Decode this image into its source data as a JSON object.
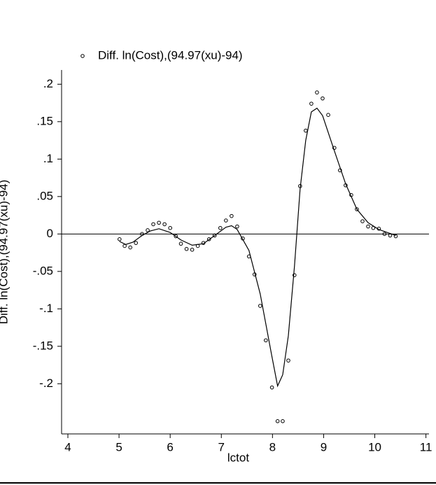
{
  "chart_data": {
    "type": "scatter",
    "y_label": "Diff. ln(Cost),(94.97(xu)-94)",
    "x_label": "lctot",
    "xlim": [
      3.877,
      11.06
    ],
    "ylim": [
      -0.267,
      0.219
    ],
    "xticks": [
      4,
      5,
      6,
      7,
      8,
      9,
      10,
      11
    ],
    "yticks": [
      {
        "value": 0.2,
        "label": ".2"
      },
      {
        "value": 0.15,
        "label": ".15"
      },
      {
        "value": 0.1,
        "label": ".1"
      },
      {
        "value": 0.05,
        "label": ".05"
      },
      0,
      {
        "value": -0.05,
        "label": "-.05"
      },
      {
        "value": -0.1,
        "label": "-.1"
      },
      {
        "value": -0.15,
        "label": "-.15"
      },
      {
        "value": -0.2,
        "label": "-.2"
      }
    ],
    "hline": 0,
    "series": [
      {
        "name": "Diff. ln(Cost),(94.97(xu)-94)",
        "type": "scatter",
        "color": "#000000",
        "x": [
          5.01,
          5.11,
          5.22,
          5.33,
          5.45,
          5.56,
          5.67,
          5.78,
          5.89,
          6.0,
          6.11,
          6.21,
          6.32,
          6.43,
          6.54,
          6.65,
          6.76,
          6.87,
          6.98,
          7.09,
          7.2,
          7.31,
          7.42,
          7.54,
          7.65,
          7.76,
          7.87,
          7.99,
          8.1,
          8.2,
          8.31,
          8.43,
          8.54,
          8.65,
          8.76,
          8.87,
          8.98,
          9.09,
          9.21,
          9.32,
          9.43,
          9.54,
          9.65,
          9.76,
          9.87,
          9.97,
          10.08,
          10.19,
          10.3,
          10.41
        ],
        "values": [
          -0.007,
          -0.016,
          -0.018,
          -0.012,
          0,
          0.005,
          0.013,
          0.015,
          0.013,
          0.008,
          -0.003,
          -0.013,
          -0.02,
          -0.021,
          -0.016,
          -0.012,
          -0.007,
          -0.002,
          0.008,
          0.018,
          0.024,
          0.01,
          -0.006,
          -0.03,
          -0.054,
          -0.096,
          -0.142,
          -0.205,
          -0.25,
          -0.25,
          -0.169,
          -0.055,
          0.064,
          0.138,
          0.174,
          0.189,
          0.181,
          0.159,
          0.115,
          0.085,
          0.065,
          0.052,
          0.033,
          0.017,
          0.01,
          0.008,
          0.007,
          0,
          -0.002,
          -0.003
        ]
      },
      {
        "type": "line",
        "color": "#000000",
        "x": [
          5.01,
          5.13,
          5.27,
          5.45,
          5.61,
          5.78,
          6.0,
          6.21,
          6.43,
          6.65,
          6.87,
          7.09,
          7.2,
          7.31,
          7.54,
          7.76,
          7.99,
          8.1,
          8.2,
          8.31,
          8.43,
          8.54,
          8.65,
          8.76,
          8.87,
          8.98,
          9.21,
          9.43,
          9.65,
          9.87,
          10.08,
          10.41
        ],
        "values": [
          -0.01,
          -0.014,
          -0.011,
          -0.002,
          0.004,
          0.007,
          0.002,
          -0.008,
          -0.015,
          -0.013,
          -0.002,
          0.009,
          0.011,
          0.006,
          -0.022,
          -0.08,
          -0.164,
          -0.203,
          -0.188,
          -0.136,
          -0.043,
          0.06,
          0.125,
          0.163,
          0.168,
          0.158,
          0.111,
          0.067,
          0.033,
          0.015,
          0.006,
          -0.002
        ]
      }
    ]
  }
}
